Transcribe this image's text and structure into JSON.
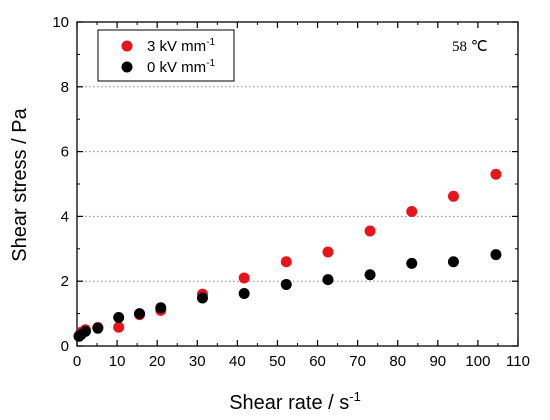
{
  "chart_data": {
    "type": "scatter",
    "xlabel": "Shear rate / s",
    "xlabel_sup": "-1",
    "ylabel": "Shear stress / Pa",
    "xlim": [
      0,
      110
    ],
    "ylim": [
      0,
      10
    ],
    "x_ticks": [
      "0",
      "10",
      "20",
      "30",
      "40",
      "50",
      "60",
      "70",
      "80",
      "90",
      "100",
      "110"
    ],
    "y_ticks": [
      "0",
      "2",
      "4",
      "6",
      "8",
      "10"
    ],
    "grid": "horizontal dotted",
    "legend_position": "top-left",
    "annotation": "58 ℃",
    "series": [
      {
        "name": "3 kV mm",
        "name_sup": "-1",
        "color": "#e8141b",
        "x": [
          0.5,
          1,
          2.1,
          5.2,
          10.4,
          15.6,
          20.9,
          31.3,
          41.7,
          52.2,
          62.6,
          73.1,
          83.5,
          93.9,
          104.5
        ],
        "y": [
          0.3,
          0.42,
          0.5,
          0.57,
          0.58,
          0.97,
          1.1,
          1.6,
          2.1,
          2.6,
          2.9,
          3.55,
          4.15,
          4.62,
          5.3
        ]
      },
      {
        "name": "0 kV mm",
        "name_sup": "-1",
        "color": "#000000",
        "x": [
          0.5,
          1,
          2.1,
          5.2,
          10.4,
          15.6,
          20.9,
          31.3,
          41.7,
          52.2,
          62.6,
          73.1,
          83.5,
          93.9,
          104.5
        ],
        "y": [
          0.3,
          0.35,
          0.45,
          0.55,
          0.88,
          1.0,
          1.18,
          1.48,
          1.62,
          1.9,
          2.05,
          2.2,
          2.55,
          2.6,
          2.82
        ]
      }
    ]
  }
}
